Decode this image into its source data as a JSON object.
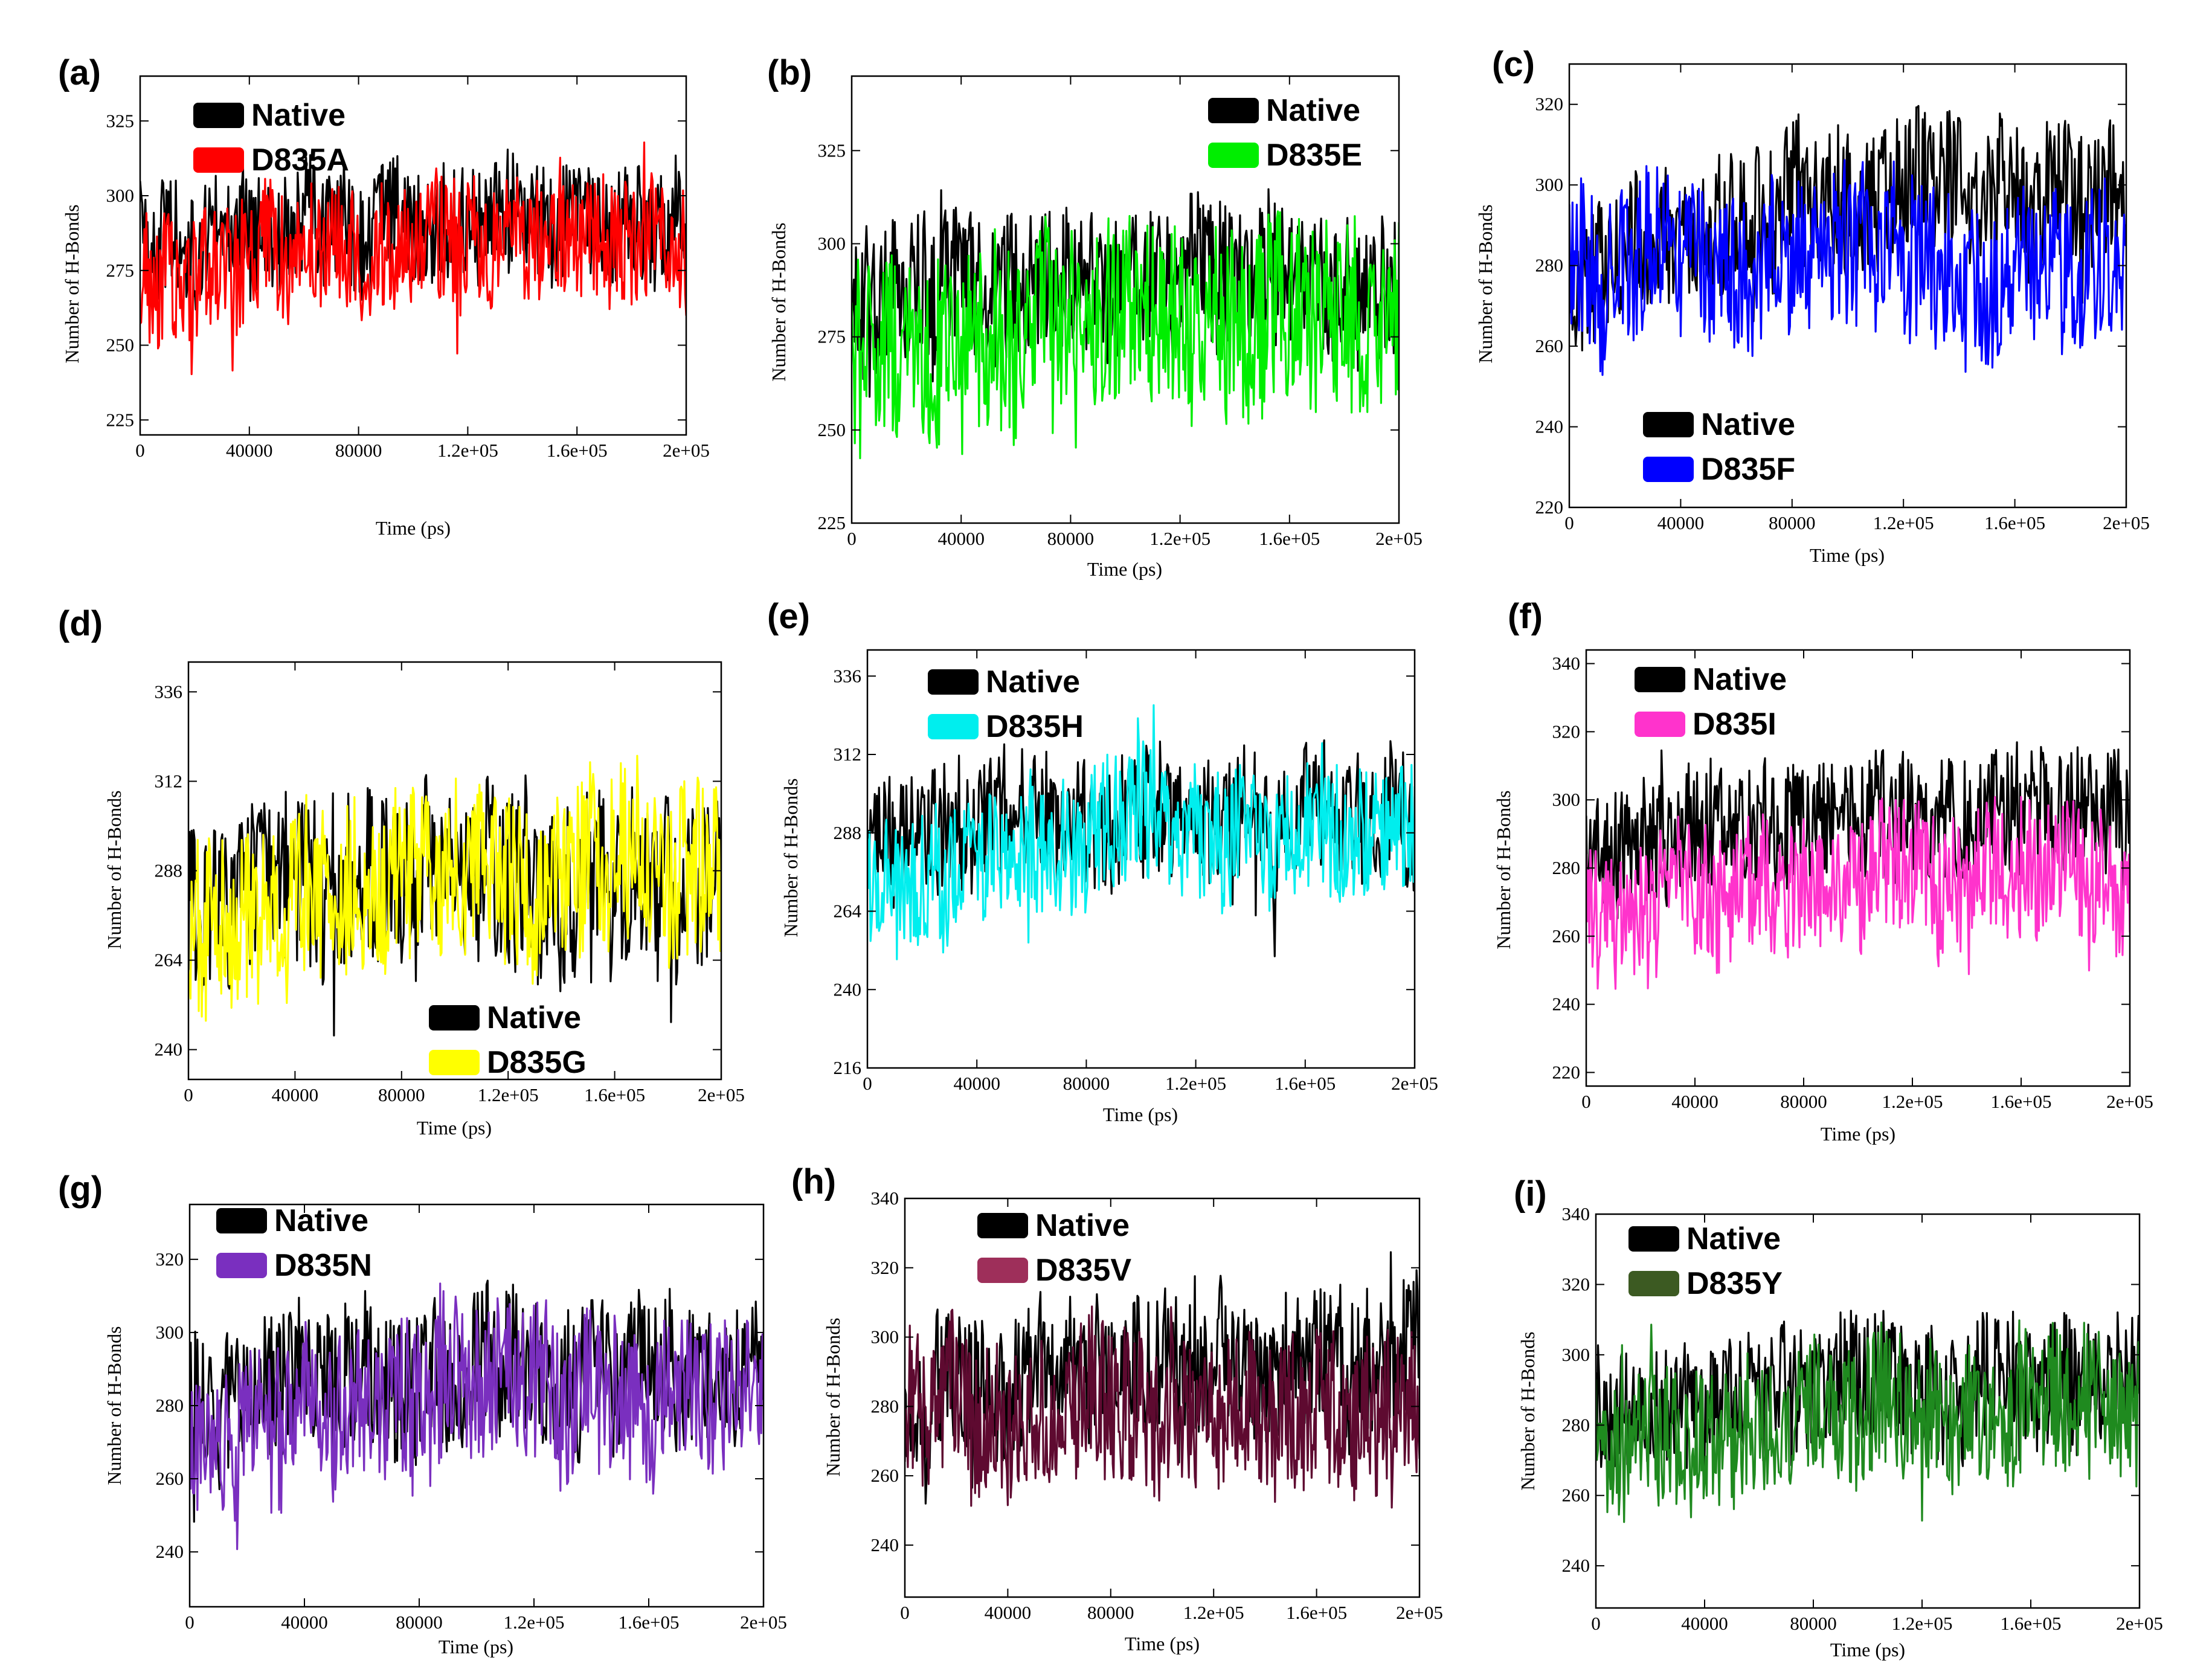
{
  "chart_data": [
    {
      "panel": "(a)",
      "type": "line",
      "xlabel": "Time (ps)",
      "ylabel": "Number of H-Bonds",
      "xlim": [
        0,
        200000
      ],
      "ylim": [
        220,
        340
      ],
      "xticks": [
        0,
        40000,
        80000,
        120000,
        160000,
        200000
      ],
      "xtick_labels": [
        "0",
        "40000",
        "80000",
        "1.2e+05",
        "1.6e+05",
        "2e+05"
      ],
      "yticks": [
        225,
        250,
        275,
        300,
        325
      ],
      "legend_position": "top-left",
      "series": [
        {
          "name": "Native",
          "color": "#000000",
          "mean_start": 285,
          "mean_end": 290,
          "amplitude": 20
        },
        {
          "name": "D835A",
          "color": "#ff0000",
          "mean_start": 272,
          "mean_end": 284,
          "amplitude": 22
        }
      ]
    },
    {
      "panel": "(b)",
      "type": "line",
      "xlabel": "Time (ps)",
      "ylabel": "Number of H-Bonds",
      "xlim": [
        0,
        200000
      ],
      "ylim": [
        225,
        345
      ],
      "xticks": [
        0,
        40000,
        80000,
        120000,
        160000,
        200000
      ],
      "xtick_labels": [
        "0",
        "40000",
        "80000",
        "1.2e+05",
        "1.6e+05",
        "2e+05"
      ],
      "yticks": [
        225,
        250,
        275,
        300,
        325
      ],
      "legend_position": "top-right",
      "series": [
        {
          "name": "Native",
          "color": "#000000",
          "mean_start": 285,
          "mean_end": 290,
          "amplitude": 20
        },
        {
          "name": "D835E",
          "color": "#00ee00",
          "mean_start": 270,
          "mean_end": 280,
          "amplitude": 25
        }
      ]
    },
    {
      "panel": "(c)",
      "type": "line",
      "xlabel": "Time (ps)",
      "ylabel": "Number of H-Bonds",
      "xlim": [
        0,
        200000
      ],
      "ylim": [
        220,
        330
      ],
      "xticks": [
        0,
        40000,
        80000,
        120000,
        160000,
        200000
      ],
      "xtick_labels": [
        "0",
        "40000",
        "80000",
        "1.2e+05",
        "1.6e+05",
        "2e+05"
      ],
      "yticks": [
        220,
        240,
        260,
        280,
        300,
        320
      ],
      "legend_position": "bottom-left",
      "series": [
        {
          "name": "Native",
          "color": "#000000",
          "mean_start": 280,
          "mean_end": 298,
          "amplitude": 18
        },
        {
          "name": "D835F",
          "color": "#0000ff",
          "mean_start": 280,
          "mean_end": 282,
          "amplitude": 20
        }
      ]
    },
    {
      "panel": "(d)",
      "type": "line",
      "xlabel": "Time (ps)",
      "ylabel": "Number of H-Bonds",
      "xlim": [
        0,
        200000
      ],
      "ylim": [
        232,
        344
      ],
      "xticks": [
        0,
        40000,
        80000,
        120000,
        160000,
        200000
      ],
      "xtick_labels": [
        "0",
        "40000",
        "80000",
        "1.2e+05",
        "1.6e+05",
        "2e+05"
      ],
      "yticks": [
        240,
        264,
        288,
        312,
        336
      ],
      "legend_position": "bottom-center",
      "series": [
        {
          "name": "Native",
          "color": "#000000",
          "mean_start": 280,
          "mean_end": 288,
          "amplitude": 24
        },
        {
          "name": "D835G",
          "color": "#ffff00",
          "mean_start": 274,
          "mean_end": 288,
          "amplitude": 24
        }
      ]
    },
    {
      "panel": "(e)",
      "type": "line",
      "xlabel": "Time (ps)",
      "ylabel": "Number of H-Bonds",
      "xlim": [
        0,
        200000
      ],
      "ylim": [
        216,
        344
      ],
      "xticks": [
        0,
        40000,
        80000,
        120000,
        160000,
        200000
      ],
      "xtick_labels": [
        "0",
        "40000",
        "80000",
        "1.2e+05",
        "1.6e+05",
        "2e+05"
      ],
      "yticks": [
        216,
        240,
        264,
        288,
        312,
        336
      ],
      "legend_position": "top-left",
      "series": [
        {
          "name": "Native",
          "color": "#000000",
          "mean_start": 290,
          "mean_end": 292,
          "amplitude": 20
        },
        {
          "name": "D835H",
          "color": "#00eeee",
          "mean_start": 268,
          "mean_end": 290,
          "amplitude": 20
        }
      ]
    },
    {
      "panel": "(f)",
      "type": "line",
      "xlabel": "Time (ps)",
      "ylabel": "Number of H-Bonds",
      "xlim": [
        0,
        200000
      ],
      "ylim": [
        216,
        344
      ],
      "xticks": [
        0,
        40000,
        80000,
        120000,
        160000,
        200000
      ],
      "xtick_labels": [
        "0",
        "40000",
        "80000",
        "1.2e+05",
        "1.6e+05",
        "2e+05"
      ],
      "yticks": [
        220,
        240,
        260,
        280,
        300,
        320,
        340
      ],
      "legend_position": "top-left",
      "series": [
        {
          "name": "Native",
          "color": "#000000",
          "mean_start": 285,
          "mean_end": 295,
          "amplitude": 18
        },
        {
          "name": "D835I",
          "color": "#ff33cc",
          "mean_start": 266,
          "mean_end": 278,
          "amplitude": 20
        }
      ]
    },
    {
      "panel": "(g)",
      "type": "line",
      "xlabel": "Time (ps)",
      "ylabel": "Number of H-Bonds",
      "xlim": [
        0,
        200000
      ],
      "ylim": [
        225,
        335
      ],
      "xticks": [
        0,
        40000,
        80000,
        120000,
        160000,
        200000
      ],
      "xtick_labels": [
        "0",
        "40000",
        "80000",
        "1.2e+05",
        "1.6e+05",
        "2e+05"
      ],
      "yticks": [
        240,
        260,
        280,
        300,
        320
      ],
      "legend_position": "top-left",
      "series": [
        {
          "name": "Native",
          "color": "#000000",
          "mean_start": 282,
          "mean_end": 290,
          "amplitude": 20
        },
        {
          "name": "D835N",
          "color": "#7a2fbf",
          "mean_start": 272,
          "mean_end": 284,
          "amplitude": 22
        }
      ]
    },
    {
      "panel": "(h)",
      "type": "line",
      "xlabel": "Time (ps)",
      "ylabel": "Number of H-Bonds",
      "xlim": [
        0,
        200000
      ],
      "ylim": [
        225,
        340
      ],
      "xticks": [
        0,
        40000,
        80000,
        120000,
        160000,
        200000
      ],
      "xtick_labels": [
        "0",
        "40000",
        "80000",
        "1.2e+05",
        "1.6e+05",
        "2e+05"
      ],
      "yticks": [
        240,
        260,
        280,
        300,
        320,
        340
      ],
      "legend_position": "top-left",
      "series": [
        {
          "name": "Native",
          "color": "#000000",
          "mean_start": 285,
          "mean_end": 292,
          "amplitude": 20
        },
        {
          "name": "D835V",
          "color": "#5e0a30",
          "legend_color": "#9e2f5a",
          "mean_start": 276,
          "mean_end": 280,
          "amplitude": 22
        }
      ]
    },
    {
      "panel": "(i)",
      "type": "line",
      "xlabel": "Time (ps)",
      "ylabel": "Number of H-Bonds",
      "xlim": [
        0,
        200000
      ],
      "ylim": [
        228,
        340
      ],
      "xticks": [
        0,
        40000,
        80000,
        120000,
        160000,
        200000
      ],
      "xtick_labels": [
        "0",
        "40000",
        "80000",
        "1.2e+05",
        "1.6e+05",
        "2e+05"
      ],
      "yticks": [
        240,
        260,
        280,
        300,
        320,
        340
      ],
      "legend_position": "top-left",
      "series": [
        {
          "name": "Native",
          "color": "#000000",
          "mean_start": 282,
          "mean_end": 292,
          "amplitude": 18
        },
        {
          "name": "D835Y",
          "color": "#1f8a1f",
          "legend_color": "#3c5a22",
          "mean_start": 272,
          "mean_end": 284,
          "amplitude": 20
        }
      ]
    }
  ]
}
